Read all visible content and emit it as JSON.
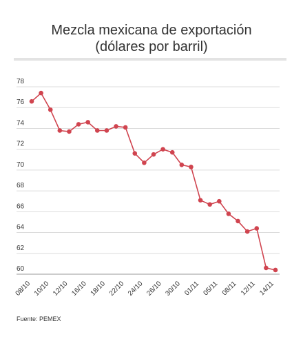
{
  "chart_data": {
    "type": "line",
    "title": "Mezcla mexicana de exportación",
    "subtitle": "(dólares por barril)",
    "xlabel": "",
    "ylabel": "",
    "ylim": [
      60,
      78
    ],
    "yticks": [
      60,
      62,
      64,
      66,
      68,
      70,
      72,
      74,
      76,
      78
    ],
    "grid": true,
    "x_tick_labels": [
      "08/10",
      "10/10",
      "12/10",
      "16/10",
      "18/10",
      "22/10",
      "24/10",
      "26/10",
      "30/10",
      "01/11",
      "05/11",
      "08/11",
      "12/11",
      "14/11"
    ],
    "series": [
      {
        "color": "#d0444f",
        "values": [
          76.6,
          77.4,
          75.8,
          73.8,
          73.7,
          74.4,
          74.6,
          73.8,
          73.8,
          74.2,
          74.1,
          71.6,
          70.7,
          71.5,
          72.0,
          71.7,
          70.5,
          70.3,
          67.1,
          66.7,
          67.0,
          65.8,
          65.1,
          64.1,
          64.4,
          60.6,
          60.4
        ]
      }
    ],
    "source": "Fuente: PEMEX"
  }
}
